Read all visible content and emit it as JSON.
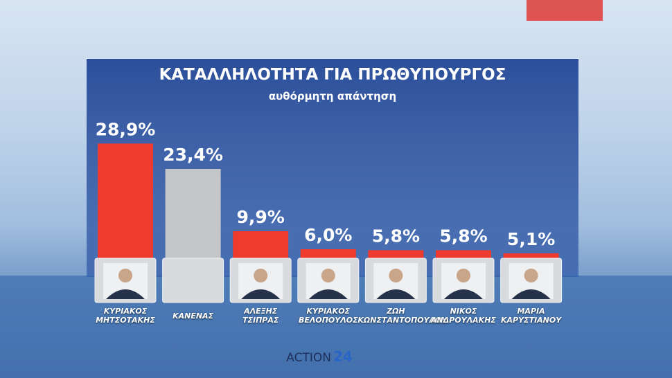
{
  "chart_data": {
    "type": "bar",
    "title": "ΚΑΤΑΛΛΗΛΟΤΗΤΑ ΓΙΑ ΠΡΩΘΥΠΟΥΡΓΟΣ",
    "subtitle": "αυθόρμητη απάντηση",
    "categories": [
      "ΚΥΡΙΑΚΟΣ\nΜΗΤΣΟΤΑΚΗΣ",
      "ΚΑΝΕΝΑΣ",
      "ΑΛΕΞΗΣ\nΤΣΙΠΡΑΣ",
      "ΚΥΡΙΑΚΟΣ\nΒΕΛΟΠΟΥΛΟΣ",
      "ΖΩΗ\nΚΩΝΣΤΑΝΤΟΠΟΥΛΟΥ",
      "ΝΙΚΟΣ\nΑΝΔΡΟΥΛΑΚΗΣ",
      "ΜΑΡΙΑ\nΚΑΡΥΣΤΙΑΝΟΥ"
    ],
    "values": [
      28.9,
      23.4,
      9.9,
      6.0,
      5.8,
      5.8,
      5.1
    ],
    "value_labels": [
      "28,9%",
      "23,4%",
      "9,9%",
      "6,0%",
      "5,8%",
      "5,8%",
      "5,1%"
    ],
    "colors": [
      "#ee3a2f",
      "#c4c6c9",
      "#ee3a2f",
      "#ee3a2f",
      "#ee3a2f",
      "#ee3a2f",
      "#ee3a2f"
    ],
    "ylim": [
      0,
      30
    ]
  },
  "brand": {
    "name": "ACTION",
    "number": "24"
  }
}
